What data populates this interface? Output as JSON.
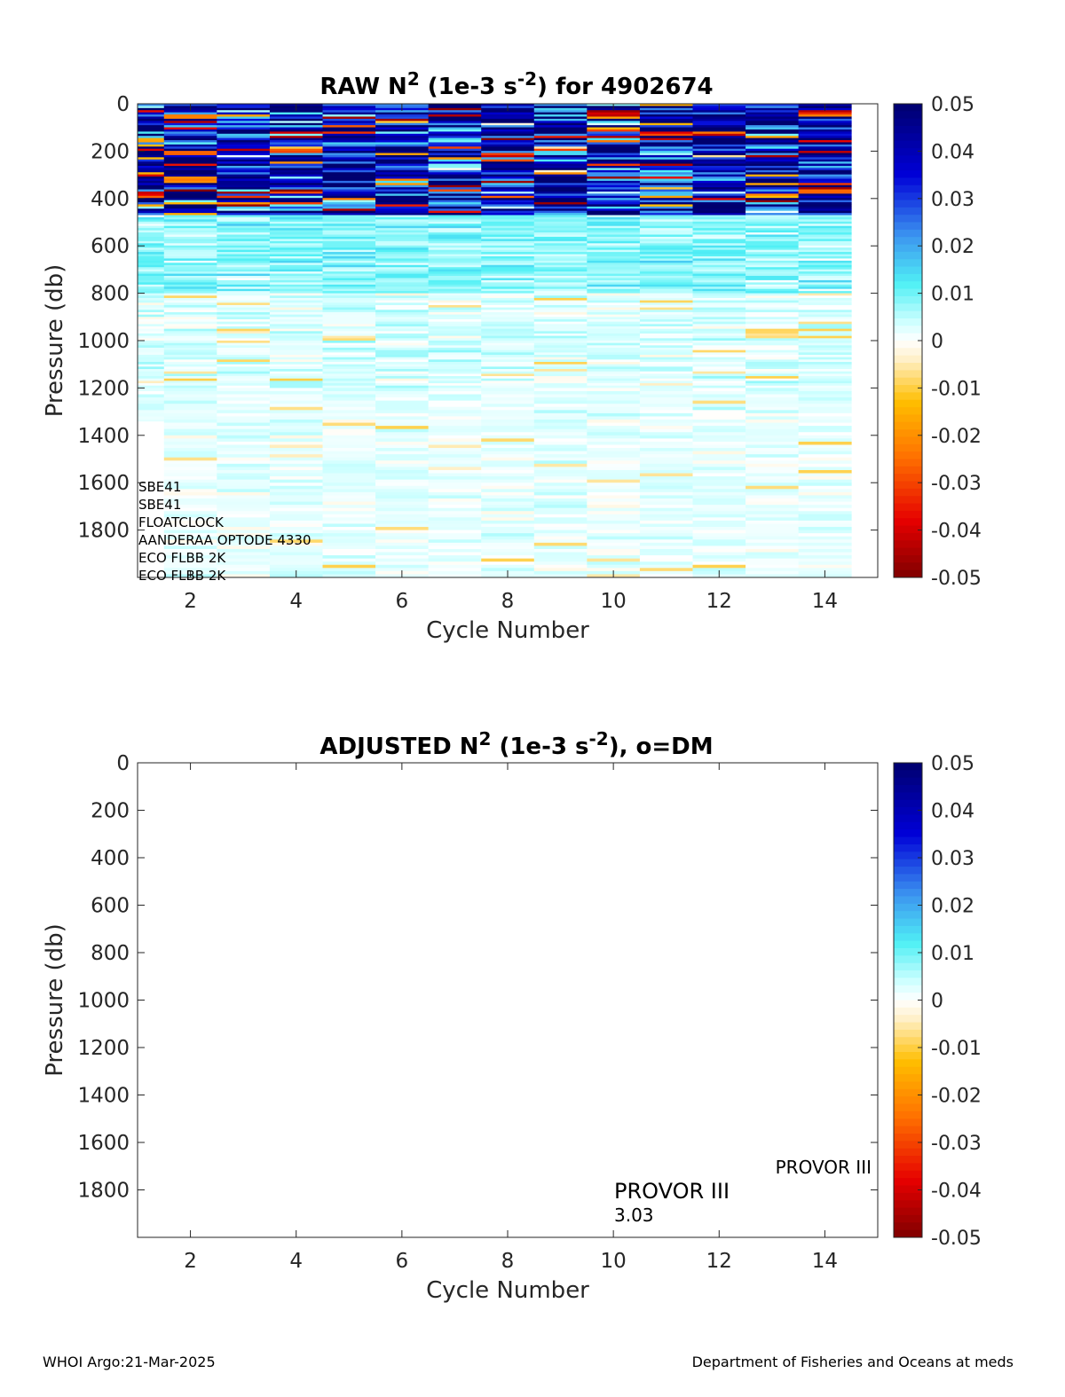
{
  "chart_data": [
    {
      "type": "heatmap",
      "title_parts": [
        "RAW N",
        "2",
        " (1e-3 s",
        "-2",
        ") for 4902674"
      ],
      "xlabel": "Cycle Number",
      "ylabel": "Pressure (db)",
      "xlim": [
        1,
        15
      ],
      "ylim": [
        0,
        2000
      ],
      "y_reversed": true,
      "xticks": [
        2,
        4,
        6,
        8,
        10,
        12,
        14
      ],
      "yticks": [
        0,
        200,
        400,
        600,
        800,
        1000,
        1200,
        1400,
        1600,
        1800
      ],
      "cycles": [
        1,
        2,
        3,
        4,
        5,
        6,
        7,
        8,
        9,
        10,
        11,
        12,
        13,
        14
      ],
      "max_pressure_by_cycle": [
        1340,
        2000,
        2000,
        2000,
        2000,
        2000,
        2000,
        2000,
        2000,
        2000,
        2000,
        2000,
        2000,
        2000
      ],
      "colorbar": {
        "range": [
          -0.05,
          0.05
        ],
        "ticks": [
          "0.05",
          "0.04",
          "0.03",
          "0.02",
          "0.01",
          "0",
          "-0.01",
          "-0.02",
          "-0.03",
          "-0.04",
          "-0.05"
        ],
        "colormap": "jet-like (dark red to yellow, white at 0, cyan to dark blue)"
      },
      "annotations": [
        "SBE41",
        "SBE41",
        "FLOATCLOCK",
        "AANDERAA OPTODE 4330",
        "ECO FLBB 2K",
        "ECO FLBB 2K"
      ]
    },
    {
      "type": "heatmap",
      "title_parts": [
        "ADJUSTED N",
        "2",
        " (1e-3 s",
        "-2",
        "), o=DM"
      ],
      "xlabel": "Cycle Number",
      "ylabel": "Pressure (db)",
      "xlim": [
        1,
        15
      ],
      "ylim": [
        0,
        2000
      ],
      "y_reversed": true,
      "xticks": [
        2,
        4,
        6,
        8,
        10,
        12,
        14
      ],
      "yticks": [
        0,
        200,
        400,
        600,
        800,
        1000,
        1200,
        1400,
        1600,
        1800
      ],
      "values": [],
      "colorbar": {
        "range": [
          -0.05,
          0.05
        ],
        "ticks": [
          "0.05",
          "0.04",
          "0.03",
          "0.02",
          "0.01",
          "0",
          "-0.01",
          "-0.02",
          "-0.03",
          "-0.04",
          "-0.05"
        ]
      },
      "annotations": {
        "platform_right": "PROVOR III",
        "platform_main": "PROVOR III",
        "firmware": "3.03"
      }
    }
  ],
  "footer": {
    "left": "WHOI Argo:21-Mar-2025",
    "right": "Department of Fisheries and Oceans at meds"
  }
}
